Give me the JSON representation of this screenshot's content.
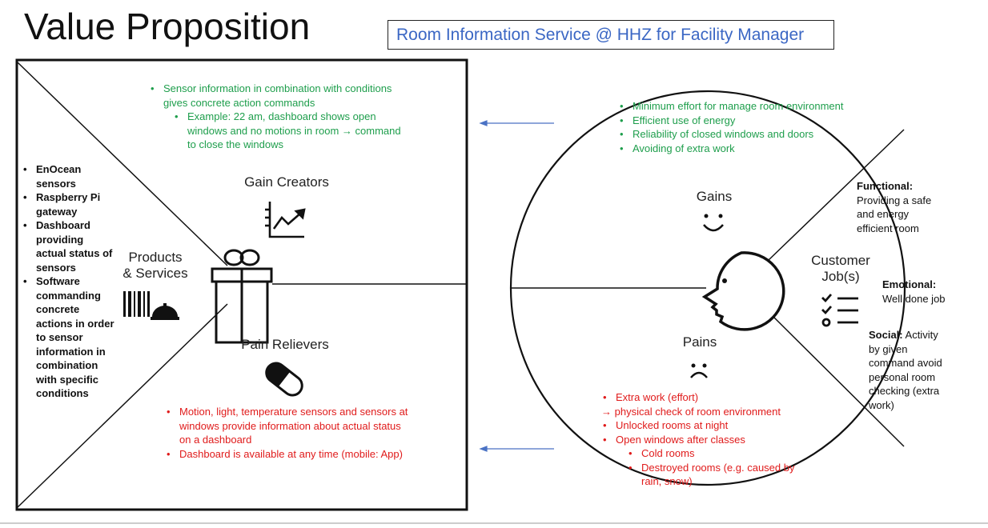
{
  "title": "Value Proposition",
  "subtitle": "Room Information Service @ HHZ for Facility Manager",
  "square": {
    "gain_creators_label": "Gain Creators",
    "pain_relievers_label": "Pain Relievers",
    "products_label_1": "Products",
    "products_label_2": "& Services",
    "gain_creators_items": [
      "Sensor information in combination with conditions gives concrete action commands"
    ],
    "gain_creators_sub_items": [
      "Example: 22 am, dashboard shows open windows and no motions in room → command to close the windows"
    ],
    "pain_relievers_items": [
      "Motion, light, temperature sensors and sensors at windows provide information about actual status on a dashboard",
      "Dashboard is available at any time (mobile: App)"
    ],
    "products_items": [
      "EnOcean sensors",
      "Raspberry Pi gateway",
      "Dashboard providing actual status of sensors",
      "Software commanding concrete actions in order to sensor information in combination with specific conditions"
    ]
  },
  "circle": {
    "gains_label": "Gains",
    "pains_label": "Pains",
    "jobs_label_1": "Customer",
    "jobs_label_2": "Job(s)",
    "gains_items": [
      "Minimum effort for manage room environment",
      "Efficient use of energy",
      "Reliability of closed windows and doors",
      "Avoiding of extra work"
    ],
    "pains_items": [
      "Extra work (effort)",
      "Unlocked rooms at night",
      "Open windows after classes"
    ],
    "pains_arrow_line": "→ physical check of room environment",
    "pains_sub_items": [
      "Cold rooms",
      "Destroyed rooms (e.g. caused by rain, snow)"
    ],
    "functional_label": "Functional:",
    "functional_text": "Providing a safe and energy efficient room",
    "emotional_label": "Emotional:",
    "emotional_text": "Well done job",
    "social_label": "Social:",
    "social_text": " Activity by given command avoid personal room checking (extra work)"
  },
  "colors": {
    "gain_text": "#1e9e4c",
    "pain_text": "#e01b1b",
    "subtitle": "#3b67c4",
    "arrow": "#4a72c4"
  }
}
